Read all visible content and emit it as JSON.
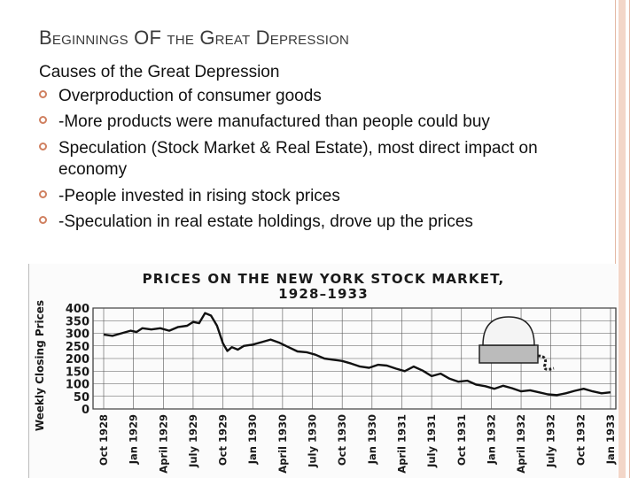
{
  "slide": {
    "title": "Beginnings OF the Great Depression",
    "heading": "Causes of the Great Depression",
    "bullets": [
      "Overproduction of consumer goods",
      "-More products were manufactured than people could buy",
      "Speculation (Stock Market & Real Estate), most direct impact on economy",
      "-People invested in rising stock prices",
      "-Speculation in real estate holdings, drove up the prices"
    ],
    "accent_color": "#d08060",
    "icon": "hollow-circle-bullet-icon"
  },
  "chart_data": {
    "type": "line",
    "title": "PRICES ON THE NEW YORK STOCK MARKET,",
    "subtitle": "1928–1933",
    "ylabel": "Weekly Closing Prices",
    "xlabel": "",
    "ylim": [
      0,
      400
    ],
    "yticks": [
      0,
      50,
      100,
      150,
      200,
      250,
      300,
      350,
      400
    ],
    "categories": [
      "Oct 1928",
      "Jan 1929",
      "April 1929",
      "July 1929",
      "Oct 1929",
      "Jan 1930",
      "April 1930",
      "July 1930",
      "Oct 1930",
      "Jan 1930",
      "April 1931",
      "July 1931",
      "Oct 1931",
      "Jan 1932",
      "April 1932",
      "July 1932",
      "Oct 1932",
      "Jan 1933"
    ],
    "grid": true,
    "series": [
      {
        "x": [
          0,
          0.3,
          0.6,
          0.9,
          1.1,
          1.3,
          1.6,
          1.9,
          2.2,
          2.5,
          2.8,
          3.0,
          3.2,
          3.4,
          3.6,
          3.8,
          4.0,
          4.15,
          4.3,
          4.5,
          4.7,
          5.0,
          5.3,
          5.6,
          5.9,
          6.2,
          6.5,
          6.8,
          7.1,
          7.4,
          7.7,
          8.0,
          8.3,
          8.6,
          8.9,
          9.2,
          9.5,
          9.8,
          10.1,
          10.4,
          10.7,
          11.0,
          11.3,
          11.6,
          11.9,
          12.2,
          12.5,
          12.8,
          13.1,
          13.4,
          13.7,
          14.0,
          14.3,
          14.6,
          14.9,
          15.2,
          15.5,
          15.8,
          16.1,
          16.4,
          16.7,
          17.0
        ],
        "values": [
          295,
          290,
          300,
          310,
          305,
          320,
          315,
          320,
          310,
          325,
          330,
          345,
          340,
          380,
          370,
          330,
          260,
          230,
          245,
          235,
          250,
          255,
          265,
          275,
          262,
          245,
          228,
          225,
          215,
          200,
          195,
          190,
          180,
          168,
          163,
          175,
          172,
          160,
          150,
          168,
          152,
          130,
          140,
          120,
          108,
          112,
          96,
          90,
          80,
          92,
          82,
          70,
          74,
          66,
          58,
          55,
          62,
          72,
          80,
          70,
          62,
          66
        ]
      }
    ]
  }
}
